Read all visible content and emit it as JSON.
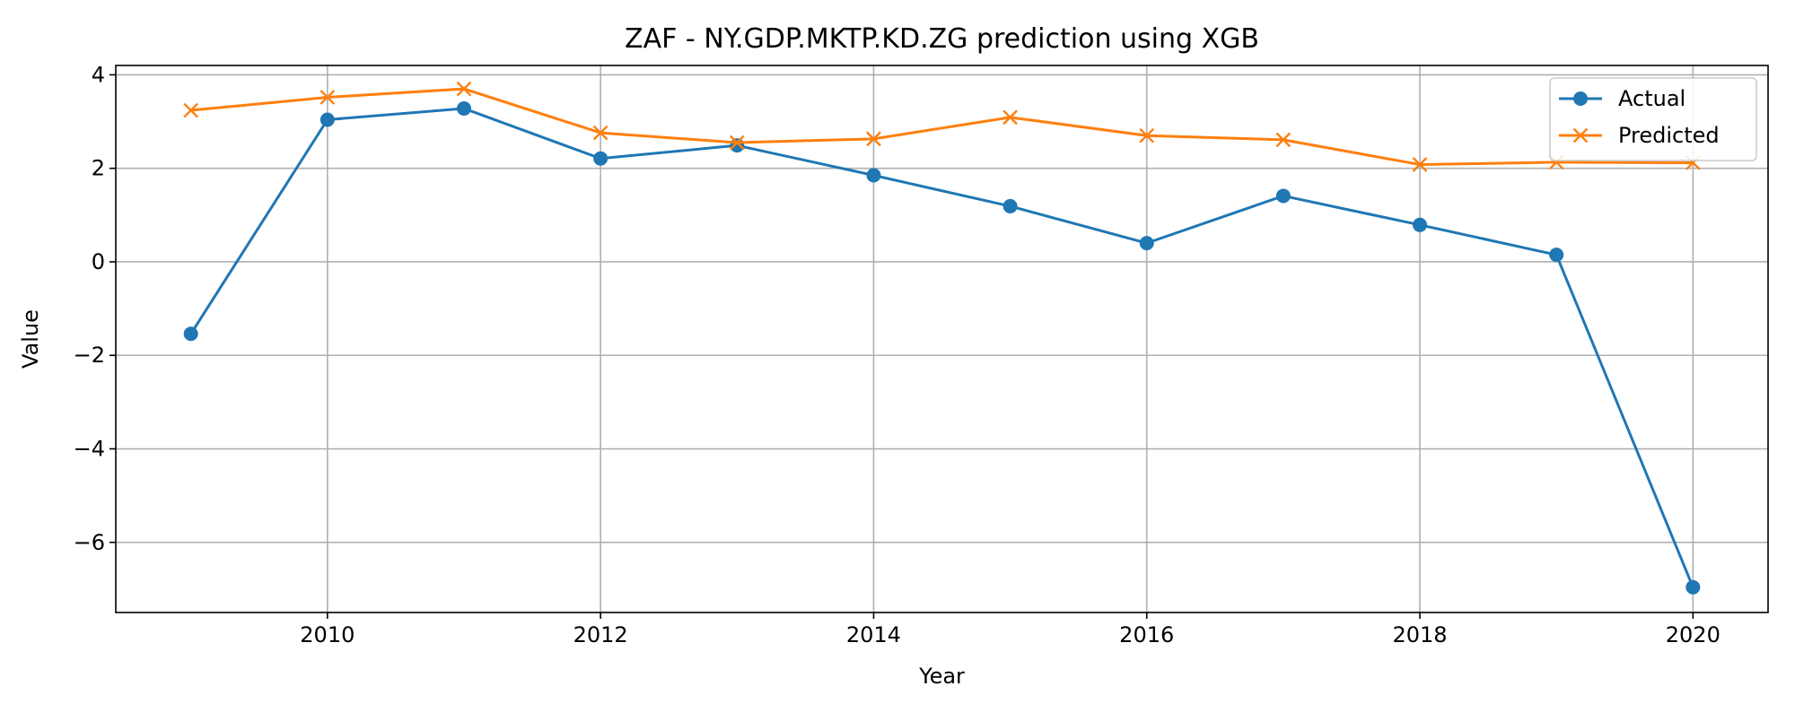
{
  "chart_data": {
    "type": "line",
    "title": "ZAF - NY.GDP.MKTP.KD.ZG prediction using XGB",
    "xlabel": "Year",
    "ylabel": "Value",
    "x": [
      2009,
      2010,
      2011,
      2012,
      2013,
      2014,
      2015,
      2016,
      2017,
      2018,
      2019,
      2020
    ],
    "xlim": [
      2008.45,
      2020.55
    ],
    "ylim": [
      -7.5,
      4.2
    ],
    "xticks": [
      2010,
      2012,
      2014,
      2016,
      2018,
      2020
    ],
    "yticks": [
      -6,
      -4,
      -2,
      0,
      2,
      4
    ],
    "ytick_labels": [
      "−6",
      "−4",
      "−2",
      "0",
      "2",
      "4"
    ],
    "grid": true,
    "legend_position": "top-right",
    "series": [
      {
        "name": "Actual",
        "color": "#1f77b4",
        "marker": "circle",
        "values": [
          -1.54,
          3.04,
          3.28,
          2.21,
          2.49,
          1.85,
          1.19,
          0.4,
          1.41,
          0.79,
          0.15,
          -6.96
        ]
      },
      {
        "name": "Predicted",
        "color": "#ff7f0e",
        "marker": "x",
        "values": [
          3.24,
          3.52,
          3.7,
          2.76,
          2.55,
          2.63,
          3.09,
          2.7,
          2.61,
          2.08,
          2.13,
          2.12
        ]
      }
    ]
  }
}
